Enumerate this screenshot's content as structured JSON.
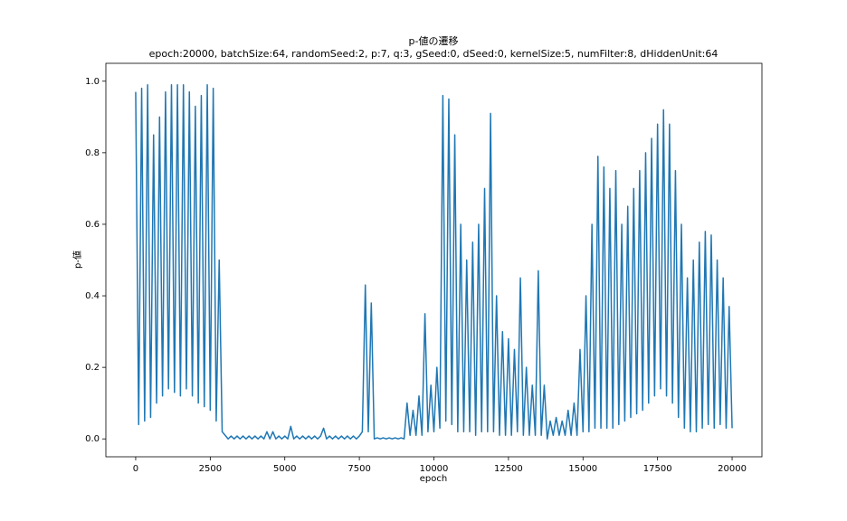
{
  "chart_data": {
    "type": "line",
    "title": "p-値の遷移",
    "subtitle": "epoch:20000, batchSize:64, randomSeed:2, p:7, q:3, gSeed:0, dSeed:0, kernelSize:5, numFilter:8, dHiddenUnit:64",
    "xlabel": "epoch",
    "ylabel": "p-値",
    "x": [
      0,
      100,
      200,
      300,
      400,
      500,
      600,
      700,
      800,
      900,
      1000,
      1100,
      1200,
      1300,
      1400,
      1500,
      1600,
      1700,
      1800,
      1900,
      2000,
      2100,
      2200,
      2300,
      2400,
      2500,
      2600,
      2700,
      2800,
      2900,
      3000,
      3100,
      3200,
      3300,
      3400,
      3500,
      3600,
      3700,
      3800,
      3900,
      4000,
      4100,
      4200,
      4300,
      4400,
      4500,
      4600,
      4700,
      4800,
      4900,
      5000,
      5100,
      5200,
      5300,
      5400,
      5500,
      5600,
      5700,
      5800,
      5900,
      6000,
      6100,
      6200,
      6300,
      6400,
      6500,
      6600,
      6700,
      6800,
      6900,
      7000,
      7100,
      7200,
      7300,
      7400,
      7500,
      7600,
      7700,
      7800,
      7900,
      8000,
      8100,
      8200,
      8300,
      8400,
      8500,
      8600,
      8700,
      8800,
      8900,
      9000,
      9100,
      9200,
      9300,
      9400,
      9500,
      9600,
      9700,
      9800,
      9900,
      10000,
      10100,
      10200,
      10300,
      10400,
      10500,
      10600,
      10700,
      10800,
      10900,
      11000,
      11100,
      11200,
      11300,
      11400,
      11500,
      11600,
      11700,
      11800,
      11900,
      12000,
      12100,
      12200,
      12300,
      12400,
      12500,
      12600,
      12700,
      12800,
      12900,
      13000,
      13100,
      13200,
      13300,
      13400,
      13500,
      13600,
      13700,
      13800,
      13900,
      14000,
      14100,
      14200,
      14300,
      14400,
      14500,
      14600,
      14700,
      14800,
      14900,
      15000,
      15100,
      15200,
      15300,
      15400,
      15500,
      15600,
      15700,
      15800,
      15900,
      16000,
      16100,
      16200,
      16300,
      16400,
      16500,
      16600,
      16700,
      16800,
      16900,
      17000,
      17100,
      17200,
      17300,
      17400,
      17500,
      17600,
      17700,
      17800,
      17900,
      18000,
      18100,
      18200,
      18300,
      18400,
      18500,
      18600,
      18700,
      18800,
      18900,
      19000,
      19100,
      19200,
      19300,
      19400,
      19500,
      19600,
      19700,
      19800,
      19900,
      20000
    ],
    "series": [
      {
        "name": "p-値",
        "color": "#1f77b4",
        "values": [
          0.97,
          0.04,
          0.98,
          0.05,
          0.99,
          0.06,
          0.85,
          0.1,
          0.9,
          0.12,
          0.97,
          0.14,
          0.99,
          0.13,
          0.99,
          0.12,
          0.99,
          0.14,
          0.97,
          0.12,
          0.93,
          0.1,
          0.96,
          0.09,
          0.99,
          0.08,
          0.98,
          0.05,
          0.5,
          0.02,
          0.01,
          0,
          0.008,
          0,
          0.008,
          0,
          0.008,
          0,
          0.008,
          0,
          0.008,
          0,
          0.008,
          0,
          0.02,
          0,
          0.02,
          0,
          0.008,
          0,
          0.008,
          0,
          0.035,
          0,
          0.008,
          0,
          0.008,
          0,
          0.008,
          0,
          0.008,
          0,
          0.008,
          0.03,
          0,
          0.008,
          0,
          0.008,
          0,
          0.008,
          0,
          0.008,
          0,
          0.008,
          0,
          0.008,
          0.02,
          0.43,
          0.02,
          0.38,
          0,
          0.003,
          0,
          0.003,
          0,
          0.003,
          0,
          0.003,
          0,
          0.003,
          0,
          0.1,
          0.01,
          0.08,
          0.01,
          0.12,
          0.01,
          0.35,
          0.02,
          0.15,
          0.02,
          0.2,
          0.03,
          0.96,
          0.05,
          0.95,
          0.04,
          0.85,
          0.02,
          0.6,
          0.02,
          0.5,
          0.02,
          0.55,
          0.01,
          0.6,
          0.02,
          0.7,
          0.02,
          0.91,
          0.02,
          0.4,
          0.01,
          0.3,
          0.01,
          0.28,
          0.01,
          0.25,
          0.02,
          0.45,
          0.01,
          0.2,
          0.01,
          0.15,
          0.01,
          0.47,
          0.01,
          0.15,
          0,
          0.05,
          0.01,
          0.06,
          0.01,
          0.05,
          0.01,
          0.08,
          0.01,
          0.1,
          0.01,
          0.25,
          0.02,
          0.4,
          0.02,
          0.6,
          0.03,
          0.79,
          0.03,
          0.76,
          0.03,
          0.7,
          0.03,
          0.75,
          0.04,
          0.6,
          0.05,
          0.65,
          0.06,
          0.7,
          0.07,
          0.75,
          0.08,
          0.8,
          0.1,
          0.84,
          0.12,
          0.88,
          0.14,
          0.92,
          0.12,
          0.88,
          0.1,
          0.75,
          0.06,
          0.6,
          0.03,
          0.45,
          0.02,
          0.5,
          0.02,
          0.55,
          0.03,
          0.58,
          0.04,
          0.57,
          0.03,
          0.5,
          0.04,
          0.45,
          0.03,
          0.37,
          0.03
        ]
      }
    ],
    "xlim": [
      -1000,
      21000
    ],
    "xticks": [
      0,
      2500,
      5000,
      7500,
      10000,
      12500,
      15000,
      17500,
      20000
    ],
    "ylim": [
      -0.05,
      1.05
    ],
    "yticks": [
      {
        "value": 0,
        "label": "0.0"
      },
      0.2,
      0.4,
      0.6,
      0.8,
      {
        "value": 1,
        "label": "1.0"
      }
    ],
    "grid": false
  }
}
